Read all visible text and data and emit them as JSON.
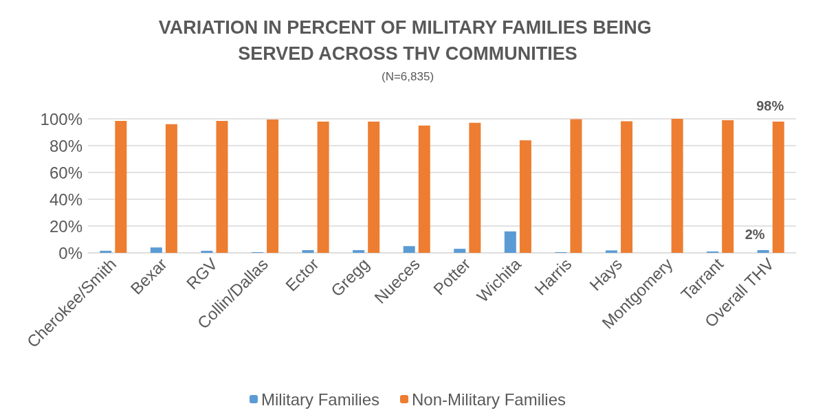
{
  "chart_data": {
    "type": "bar",
    "title": "VARIATION IN PERCENT OF MILITARY FAMILIES BEING SERVED ACROSS THV COMMUNITIES",
    "subtitle": "(N=6,835)",
    "categories": [
      "Cherokee/Smith",
      "Bexar",
      "RGV",
      "Collin/Dallas",
      "Ector",
      "Gregg",
      "Nueces",
      "Potter",
      "Wichita",
      "Harris",
      "Hays",
      "Montgomery",
      "Tarrant",
      "Overall THV"
    ],
    "series": [
      {
        "name": "Military Families",
        "color": "#5b9bd5",
        "values": [
          1.5,
          4,
          1.5,
          0.5,
          2,
          2,
          5,
          3,
          16,
          0.5,
          1.8,
          0,
          1,
          2
        ],
        "value_labels": [
          null,
          null,
          null,
          null,
          null,
          null,
          null,
          null,
          null,
          null,
          null,
          null,
          null,
          "2%"
        ]
      },
      {
        "name": "Non-Military Families",
        "color": "#ed7d31",
        "values": [
          98.5,
          96,
          98.5,
          99.5,
          98,
          98,
          95,
          97,
          84,
          99.8,
          98.2,
          100,
          99,
          98
        ],
        "value_labels": [
          null,
          null,
          null,
          null,
          null,
          null,
          null,
          null,
          null,
          null,
          null,
          null,
          null,
          "98%"
        ]
      }
    ],
    "ylim": [
      0,
      100
    ],
    "yticks": [
      {
        "value": 0,
        "label": "0%"
      },
      {
        "value": 20,
        "label": "20%"
      },
      {
        "value": 40,
        "label": "40%"
      },
      {
        "value": 60,
        "label": "60%"
      },
      {
        "value": 80,
        "label": "80%"
      },
      {
        "value": 100,
        "label": "100%"
      }
    ],
    "grid": "y",
    "legend": "bottom"
  }
}
